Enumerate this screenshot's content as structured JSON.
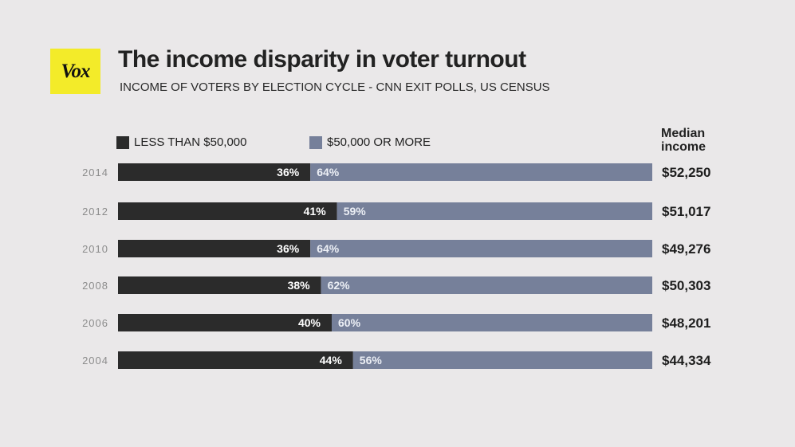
{
  "brand": {
    "logo_text": "Vox",
    "logo_color": "#f3eb29"
  },
  "chart_data": {
    "type": "bar",
    "stacked": true,
    "orientation": "horizontal",
    "title": "The income disparity in voter turnout",
    "subtitle": "INCOME OF VOTERS BY ELECTION CYCLE - CNN EXIT POLLS, US CENSUS",
    "categories": [
      "2014",
      "2012",
      "2010",
      "2008",
      "2006",
      "2004"
    ],
    "series": [
      {
        "name": "LESS THAN $50,000",
        "color": "#2b2b2b",
        "values": [
          36,
          41,
          36,
          38,
          40,
          44
        ],
        "labels": [
          "36%",
          "41%",
          "36%",
          "38%",
          "40%",
          "44%"
        ]
      },
      {
        "name": "$50,000 OR MORE",
        "color": "#76809a",
        "values": [
          64,
          59,
          64,
          62,
          60,
          56
        ],
        "labels": [
          "64%",
          "59%",
          "64%",
          "62%",
          "60%",
          "56%"
        ]
      }
    ],
    "xlim": [
      0,
      100
    ],
    "median_income": {
      "header_line1": "Median",
      "header_line2": "income",
      "values": [
        "$52,250",
        "$51,017",
        "$49,276",
        "$50,303",
        "$48,201",
        "$44,334"
      ]
    },
    "legend_position": "top-left"
  }
}
